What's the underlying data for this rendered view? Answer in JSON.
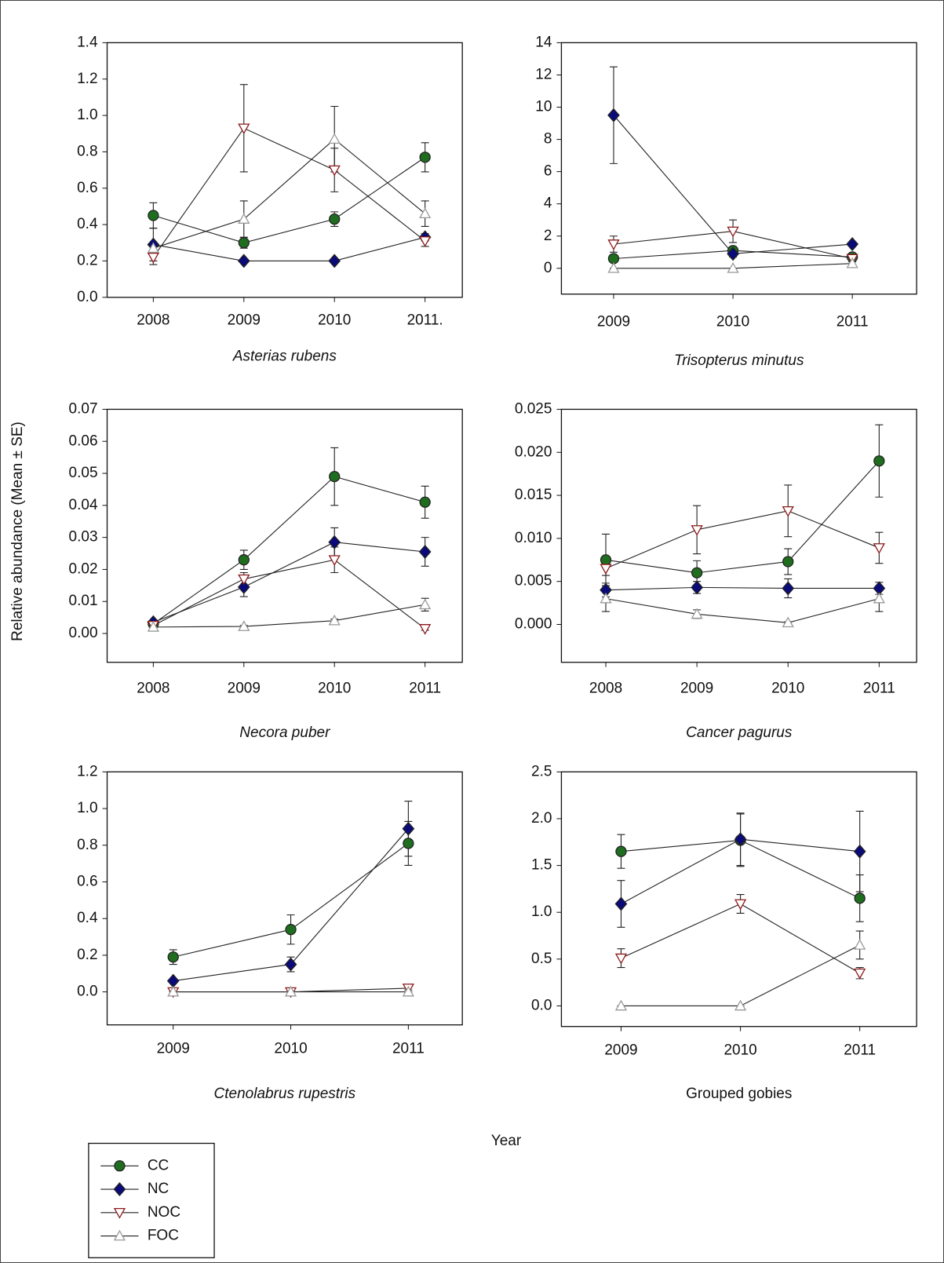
{
  "y_label": "Relative abundance (Mean ± SE)",
  "x_label": "Year",
  "chart_data": [
    {
      "type": "line",
      "title": "Asterias rubens",
      "categories": [
        "2008",
        "2009",
        "2010",
        "2011."
      ],
      "ylim": [
        0,
        1.4
      ],
      "yticks": [
        {
          "value": 0,
          "label": "0.0"
        },
        0.2,
        0.4,
        0.6,
        0.8,
        {
          "value": 1,
          "label": "1.0"
        },
        1.2,
        1.4
      ],
      "series": [
        {
          "name": "CC",
          "color": "#1f6e1f",
          "marker": "circle",
          "filled": true,
          "values": [
            0.45,
            0.3,
            0.43,
            0.77
          ],
          "errors": [
            0.07,
            0.03,
            0.04,
            0.08
          ]
        },
        {
          "name": "NC",
          "color": "#0a0a7a",
          "marker": "diamond",
          "filled": true,
          "values": [
            0.29,
            0.2,
            0.2,
            0.33
          ],
          "errors": [
            0.09,
            0.01,
            0.01,
            0.02
          ]
        },
        {
          "name": "NOC",
          "color": "#8b1a1a",
          "marker": "triangle-down",
          "filled": false,
          "values": [
            0.22,
            0.93,
            0.7,
            0.31
          ],
          "errors": [
            0.04,
            0.24,
            0.12,
            0.03
          ]
        },
        {
          "name": "FOC",
          "color": "#999999",
          "marker": "triangle-up",
          "filled": false,
          "values": [
            0.27,
            0.43,
            0.87,
            0.46
          ],
          "errors": [
            0.02,
            0.1,
            0.18,
            0.07
          ]
        }
      ]
    },
    {
      "type": "line",
      "title": "Trisopterus minutus",
      "categories": [
        "2009",
        "2010",
        "2011"
      ],
      "ylim": [
        -1.6,
        14
      ],
      "yticks": [
        0,
        2,
        4,
        6,
        8,
        10,
        12,
        14
      ],
      "series": [
        {
          "name": "CC",
          "color": "#1f6e1f",
          "marker": "circle",
          "filled": true,
          "values": [
            0.6,
            1.1,
            0.7
          ],
          "errors": [
            0.2,
            0.2,
            0.1
          ]
        },
        {
          "name": "NC",
          "color": "#0a0a7a",
          "marker": "diamond",
          "filled": true,
          "values": [
            9.5,
            0.9,
            1.5
          ],
          "errors": [
            3.0,
            0.2,
            0.1
          ]
        },
        {
          "name": "NOC",
          "color": "#8b1a1a",
          "marker": "triangle-down",
          "filled": false,
          "values": [
            1.5,
            2.3,
            0.6
          ],
          "errors": [
            0.5,
            0.7,
            0.1
          ]
        },
        {
          "name": "FOC",
          "color": "#999999",
          "marker": "triangle-up",
          "filled": false,
          "values": [
            0.0,
            0.0,
            0.3
          ],
          "errors": [
            0,
            0,
            0.1
          ]
        }
      ]
    },
    {
      "type": "line",
      "title": "Necora puber",
      "categories": [
        "2008",
        "2009",
        "2010",
        "2011"
      ],
      "ylim": [
        -0.009,
        0.07
      ],
      "yticks": [
        {
          "value": 0,
          "label": "0.00"
        },
        0.01,
        0.02,
        0.03,
        0.04,
        0.05,
        0.06,
        0.07
      ],
      "series": [
        {
          "name": "CC",
          "color": "#1f6e1f",
          "marker": "circle",
          "filled": true,
          "values": [
            0.003,
            0.023,
            0.049,
            0.041
          ],
          "errors": [
            0.0005,
            0.003,
            0.009,
            0.005
          ]
        },
        {
          "name": "NC",
          "color": "#0a0a7a",
          "marker": "diamond",
          "filled": true,
          "values": [
            0.0035,
            0.0145,
            0.0285,
            0.0255
          ],
          "errors": [
            0.0005,
            0.003,
            0.0045,
            0.0045
          ]
        },
        {
          "name": "NOC",
          "color": "#8b1a1a",
          "marker": "triangle-down",
          "filled": false,
          "values": [
            0.0025,
            0.017,
            0.023,
            0.0015
          ],
          "errors": [
            0.0005,
            0.002,
            0.004,
            0.0005
          ]
        },
        {
          "name": "FOC",
          "color": "#999999",
          "marker": "triangle-up",
          "filled": false,
          "values": [
            0.002,
            0.0022,
            0.004,
            0.009
          ],
          "errors": [
            0.0003,
            0.0003,
            0.0005,
            0.002
          ]
        }
      ]
    },
    {
      "type": "line",
      "title": "Cancer pagurus",
      "categories": [
        "2008",
        "2009",
        "2010",
        "2011"
      ],
      "ylim": [
        -0.0044,
        0.025
      ],
      "yticks": [
        {
          "value": 0,
          "label": "0.000"
        },
        0.005,
        {
          "value": 0.01,
          "label": "0.010"
        },
        0.015,
        {
          "value": 0.02,
          "label": "0.020"
        },
        0.025
      ],
      "series": [
        {
          "name": "CC",
          "color": "#1f6e1f",
          "marker": "circle",
          "filled": true,
          "values": [
            0.0075,
            0.006,
            0.0073,
            0.019
          ],
          "errors": [
            0.003,
            0.0014,
            0.0015,
            0.0042
          ]
        },
        {
          "name": "NC",
          "color": "#0a0a7a",
          "marker": "diamond",
          "filled": true,
          "values": [
            0.004,
            0.0043,
            0.0042,
            0.0042
          ],
          "errors": [
            0.0008,
            0.0007,
            0.0011,
            0.0007
          ]
        },
        {
          "name": "NOC",
          "color": "#8b1a1a",
          "marker": "triangle-down",
          "filled": false,
          "values": [
            0.0065,
            0.011,
            0.0132,
            0.0089
          ],
          "errors": [
            0.0008,
            0.0028,
            0.003,
            0.0018
          ]
        },
        {
          "name": "FOC",
          "color": "#999999",
          "marker": "triangle-up",
          "filled": false,
          "values": [
            0.003,
            0.0012,
            0.0002,
            0.003
          ],
          "errors": [
            0.0015,
            0.0005,
            0.0001,
            0.0015
          ]
        }
      ]
    },
    {
      "type": "line",
      "title": "Ctenolabrus rupestris",
      "categories": [
        "2009",
        "2010",
        "2011"
      ],
      "ylim": [
        -0.18,
        1.2
      ],
      "yticks": [
        {
          "value": 0,
          "label": "0.0"
        },
        0.2,
        0.4,
        0.6,
        0.8,
        {
          "value": 1,
          "label": "1.0"
        },
        1.2
      ],
      "series": [
        {
          "name": "CC",
          "color": "#1f6e1f",
          "marker": "circle",
          "filled": true,
          "values": [
            0.19,
            0.34,
            0.81
          ],
          "errors": [
            0.04,
            0.08,
            0.12
          ]
        },
        {
          "name": "NC",
          "color": "#0a0a7a",
          "marker": "diamond",
          "filled": true,
          "values": [
            0.06,
            0.15,
            0.89
          ],
          "errors": [
            0.01,
            0.04,
            0.15
          ]
        },
        {
          "name": "NOC",
          "color": "#8b1a1a",
          "marker": "triangle-down",
          "filled": false,
          "values": [
            0.0,
            0.0,
            0.02
          ],
          "errors": [
            0,
            0,
            0.01
          ]
        },
        {
          "name": "FOC",
          "color": "#999999",
          "marker": "triangle-up",
          "filled": false,
          "values": [
            0.0,
            0.0,
            0.0
          ],
          "errors": [
            0,
            0,
            0
          ]
        }
      ]
    },
    {
      "type": "line",
      "title": "Grouped gobies",
      "categories": [
        "2009",
        "2010",
        "2011"
      ],
      "ylim": [
        -0.22,
        2.5
      ],
      "yticks": [
        {
          "value": 0,
          "label": "0.0"
        },
        0.5,
        {
          "value": 1,
          "label": "1.0"
        },
        1.5,
        {
          "value": 2,
          "label": "2.0"
        },
        2.5
      ],
      "series": [
        {
          "name": "CC",
          "color": "#1f6e1f",
          "marker": "circle",
          "filled": true,
          "values": [
            1.65,
            1.77,
            1.15
          ],
          "errors": [
            0.18,
            0.28,
            0.25
          ]
        },
        {
          "name": "NC",
          "color": "#0a0a7a",
          "marker": "diamond",
          "filled": true,
          "values": [
            1.09,
            1.78,
            1.65
          ],
          "errors": [
            0.25,
            0.28,
            0.43
          ]
        },
        {
          "name": "NOC",
          "color": "#8b1a1a",
          "marker": "triangle-down",
          "filled": false,
          "values": [
            0.51,
            1.09,
            0.35
          ],
          "errors": [
            0.1,
            0.1,
            0.06
          ]
        },
        {
          "name": "FOC",
          "color": "#999999",
          "marker": "triangle-up",
          "filled": false,
          "values": [
            0.0,
            0.0,
            0.65
          ],
          "errors": [
            0,
            0,
            0.15
          ]
        }
      ]
    }
  ]
}
